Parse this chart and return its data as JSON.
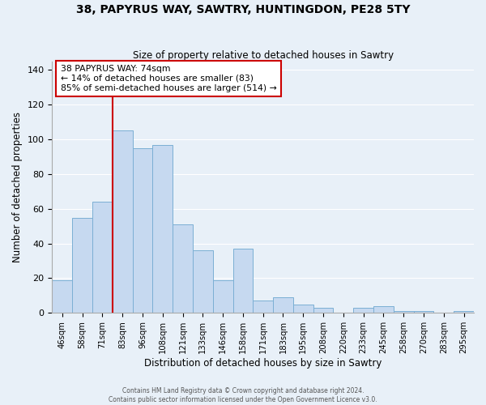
{
  "title": "38, PAPYRUS WAY, SAWTRY, HUNTINGDON, PE28 5TY",
  "subtitle": "Size of property relative to detached houses in Sawtry",
  "xlabel": "Distribution of detached houses by size in Sawtry",
  "ylabel": "Number of detached properties",
  "bar_labels": [
    "46sqm",
    "58sqm",
    "71sqm",
    "83sqm",
    "96sqm",
    "108sqm",
    "121sqm",
    "133sqm",
    "146sqm",
    "158sqm",
    "171sqm",
    "183sqm",
    "195sqm",
    "208sqm",
    "220sqm",
    "233sqm",
    "245sqm",
    "258sqm",
    "270sqm",
    "283sqm",
    "295sqm"
  ],
  "bar_values": [
    19,
    55,
    64,
    105,
    95,
    97,
    51,
    36,
    19,
    37,
    7,
    9,
    5,
    3,
    0,
    3,
    4,
    1,
    1,
    0,
    1
  ],
  "bar_color": "#c6d9f0",
  "bar_edge_color": "#7bafd4",
  "red_line_bar_index": 2,
  "highlight_line_color": "#cc0000",
  "ylim": [
    0,
    145
  ],
  "yticks": [
    0,
    20,
    40,
    60,
    80,
    100,
    120,
    140
  ],
  "annotation_title": "38 PAPYRUS WAY: 74sqm",
  "annotation_line1": "← 14% of detached houses are smaller (83)",
  "annotation_line2": "85% of semi-detached houses are larger (514) →",
  "footer_line1": "Contains HM Land Registry data © Crown copyright and database right 2024.",
  "footer_line2": "Contains public sector information licensed under the Open Government Licence v3.0.",
  "bg_color": "#e8f0f8",
  "plot_bg_color": "#e8f0f8"
}
